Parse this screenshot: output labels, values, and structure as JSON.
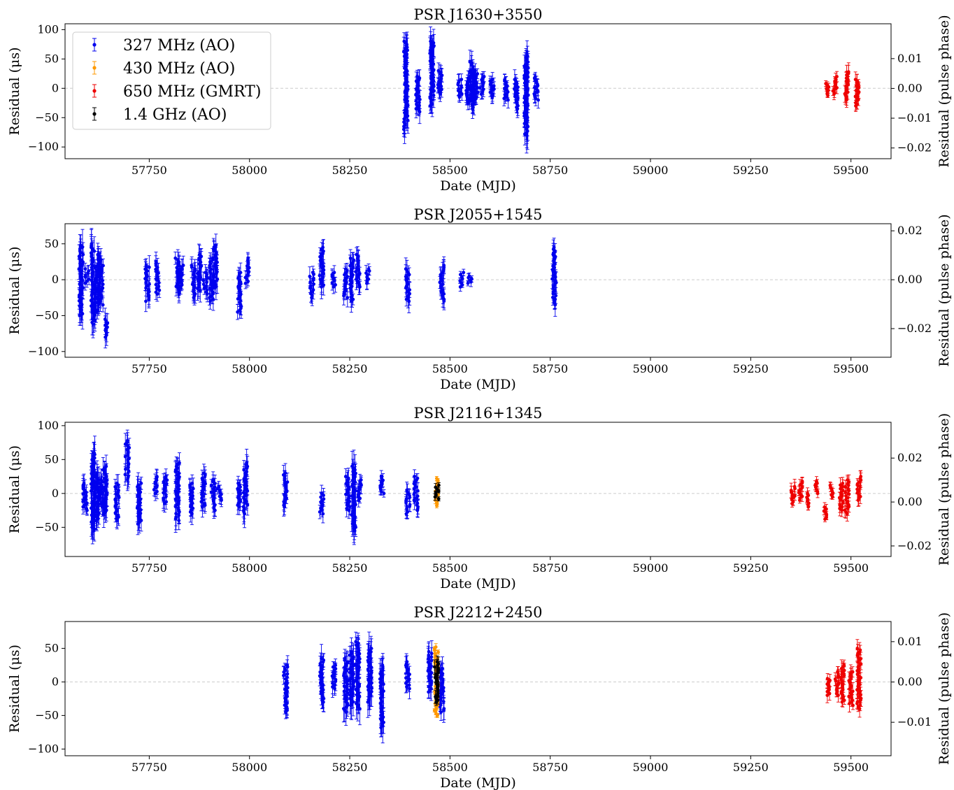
{
  "legend": [
    {
      "label": "327 MHz (AO)",
      "color": "#0000ee"
    },
    {
      "label": "430 MHz (AO)",
      "color": "#ff9900"
    },
    {
      "label": "650 MHz (GMRT)",
      "color": "#ee0000"
    },
    {
      "label": "1.4 GHz (AO)",
      "color": "#000000"
    }
  ],
  "colors": {
    "blue": "#0000ee",
    "orange": "#ff9900",
    "red": "#ee0000",
    "black": "#000000",
    "zero_line": "#cccccc"
  },
  "chart_data": [
    {
      "type": "scatter",
      "title": "PSR J1630+3550",
      "xlabel": "Date (MJD)",
      "ylabel": "Residual (μs)",
      "ylabel_right": "Residual (pulse phase)",
      "xlim": [
        57540,
        59600
      ],
      "ylim": [
        -120,
        110
      ],
      "ylim_right": [
        -0.0236,
        0.0217
      ],
      "xticks": [
        "57750",
        "58000",
        "58250",
        "58500",
        "58750",
        "59000",
        "59250",
        "59500"
      ],
      "yticks": [
        "−100",
        "−50",
        "0",
        "50",
        "100"
      ],
      "yticks_right": [
        "−0.02",
        "−0.01",
        "0.00",
        "0.01"
      ],
      "legend_position": "upper-left",
      "zero_line": true,
      "series": [
        {
          "name": "327 MHz (AO)",
          "color": "blue",
          "epochs": [
            {
              "x": 58390,
              "ymin": -70,
              "ymax": 80,
              "err": 20
            },
            {
              "x": 58420,
              "ymin": -40,
              "ymax": 20,
              "err": 15
            },
            {
              "x": 58455,
              "ymin": -30,
              "ymax": 80,
              "err": 20
            },
            {
              "x": 58475,
              "ymin": -10,
              "ymax": 30,
              "err": 12
            },
            {
              "x": 58525,
              "ymin": -15,
              "ymax": 15,
              "err": 10
            },
            {
              "x": 58545,
              "ymin": -25,
              "ymax": 20,
              "err": 12
            },
            {
              "x": 58555,
              "ymin": -35,
              "ymax": 45,
              "err": 15
            },
            {
              "x": 58565,
              "ymin": -20,
              "ymax": 30,
              "err": 12
            },
            {
              "x": 58580,
              "ymin": -10,
              "ymax": 20,
              "err": 10
            },
            {
              "x": 58605,
              "ymin": -15,
              "ymax": 15,
              "err": 10
            },
            {
              "x": 58640,
              "ymin": -20,
              "ymax": 15,
              "err": 10
            },
            {
              "x": 58665,
              "ymin": -35,
              "ymax": 15,
              "err": 12
            },
            {
              "x": 58690,
              "ymin": -78,
              "ymax": 55,
              "err": 25
            },
            {
              "x": 58715,
              "ymin": -20,
              "ymax": 20,
              "err": 10
            }
          ]
        },
        {
          "name": "650 MHz (GMRT)",
          "color": "red",
          "epochs": [
            {
              "x": 59440,
              "ymin": -12,
              "ymax": 8,
              "err": 5
            },
            {
              "x": 59460,
              "ymin": -10,
              "ymax": 20,
              "err": 8
            },
            {
              "x": 59490,
              "ymin": -20,
              "ymax": 28,
              "err": 12
            },
            {
              "x": 59515,
              "ymin": -30,
              "ymax": 15,
              "err": 10
            }
          ]
        }
      ]
    },
    {
      "type": "scatter",
      "title": "PSR J2055+1545",
      "xlabel": "Date (MJD)",
      "ylabel": "Residual (μs)",
      "ylabel_right": "Residual (pulse phase)",
      "xlim": [
        57540,
        59600
      ],
      "ylim": [
        -108,
        78
      ],
      "ylim_right": [
        -0.0317,
        0.0229
      ],
      "xticks": [
        "57750",
        "58000",
        "58250",
        "58500",
        "58750",
        "59000",
        "59250",
        "59500"
      ],
      "yticks": [
        "−100",
        "−50",
        "0",
        "50"
      ],
      "yticks_right": [
        "−0.02",
        "0.00",
        "0.02"
      ],
      "zero_line": true,
      "series": [
        {
          "name": "327 MHz (AO)",
          "color": "blue",
          "epochs": [
            {
              "x": 57580,
              "ymin": -50,
              "ymax": 48,
              "err": 18
            },
            {
              "x": 57595,
              "ymin": -5,
              "ymax": 15,
              "err": 8
            },
            {
              "x": 57610,
              "ymin": -62,
              "ymax": 50,
              "err": 18
            },
            {
              "x": 57620,
              "ymin": -45,
              "ymax": 35,
              "err": 15
            },
            {
              "x": 57630,
              "ymin": -35,
              "ymax": 30,
              "err": 12
            },
            {
              "x": 57645,
              "ymin": -80,
              "ymax": -55,
              "err": 12
            },
            {
              "x": 57745,
              "ymin": -30,
              "ymax": 20,
              "err": 12
            },
            {
              "x": 57770,
              "ymin": -20,
              "ymax": 25,
              "err": 10
            },
            {
              "x": 57820,
              "ymin": -20,
              "ymax": 30,
              "err": 12
            },
            {
              "x": 57830,
              "ymin": -10,
              "ymax": 20,
              "err": 10
            },
            {
              "x": 57860,
              "ymin": -25,
              "ymax": 20,
              "err": 12
            },
            {
              "x": 57875,
              "ymin": -15,
              "ymax": 35,
              "err": 15
            },
            {
              "x": 57890,
              "ymin": -20,
              "ymax": 10,
              "err": 10
            },
            {
              "x": 57905,
              "ymin": -30,
              "ymax": 30,
              "err": 12
            },
            {
              "x": 57915,
              "ymin": -10,
              "ymax": 48,
              "err": 14
            },
            {
              "x": 57975,
              "ymin": -45,
              "ymax": 10,
              "err": 12
            },
            {
              "x": 57995,
              "ymin": -5,
              "ymax": 30,
              "err": 8
            },
            {
              "x": 58155,
              "ymin": -25,
              "ymax": 10,
              "err": 10
            },
            {
              "x": 58180,
              "ymin": -10,
              "ymax": 45,
              "err": 12
            },
            {
              "x": 58210,
              "ymin": -10,
              "ymax": 10,
              "err": 8
            },
            {
              "x": 58240,
              "ymin": -25,
              "ymax": 15,
              "err": 10
            },
            {
              "x": 58255,
              "ymin": -30,
              "ymax": 30,
              "err": 12
            },
            {
              "x": 58270,
              "ymin": -10,
              "ymax": 35,
              "err": 12
            },
            {
              "x": 58295,
              "ymin": -5,
              "ymax": 15,
              "err": 8
            },
            {
              "x": 58395,
              "ymin": -30,
              "ymax": 15,
              "err": 12
            },
            {
              "x": 58480,
              "ymin": -30,
              "ymax": 20,
              "err": 12
            },
            {
              "x": 58530,
              "ymin": -10,
              "ymax": 10,
              "err": 5
            },
            {
              "x": 58550,
              "ymin": -5,
              "ymax": 5,
              "err": 5
            },
            {
              "x": 58760,
              "ymin": -35,
              "ymax": 45,
              "err": 12
            }
          ]
        }
      ]
    },
    {
      "type": "scatter",
      "title": "PSR J2116+1345",
      "xlabel": "Date (MJD)",
      "ylabel": "Residual (μs)",
      "ylabel_right": "Residual (pulse phase)",
      "xlim": [
        57540,
        59600
      ],
      "ylim": [
        -93,
        105
      ],
      "ylim_right": [
        -0.0248,
        0.0363
      ],
      "xticks": [
        "57750",
        "58000",
        "58250",
        "58500",
        "58750",
        "59000",
        "59250",
        "59500"
      ],
      "yticks": [
        "−50",
        "0",
        "50",
        "100"
      ],
      "yticks_right": [
        "−0.02",
        "0.00",
        "0.02"
      ],
      "zero_line": true,
      "series": [
        {
          "name": "327 MHz (AO)",
          "color": "blue",
          "epochs": [
            {
              "x": 57590,
              "ymin": -25,
              "ymax": 15,
              "err": 12
            },
            {
              "x": 57610,
              "ymin": -55,
              "ymax": 60,
              "err": 20
            },
            {
              "x": 57620,
              "ymin": -40,
              "ymax": 30,
              "err": 15
            },
            {
              "x": 57630,
              "ymin": -20,
              "ymax": 20,
              "err": 12
            },
            {
              "x": 57640,
              "ymin": -30,
              "ymax": 40,
              "err": 15
            },
            {
              "x": 57670,
              "ymin": -40,
              "ymax": 15,
              "err": 12
            },
            {
              "x": 57695,
              "ymin": 20,
              "ymax": 78,
              "err": 15
            },
            {
              "x": 57725,
              "ymin": -45,
              "ymax": 15,
              "err": 15
            },
            {
              "x": 57765,
              "ymin": 0,
              "ymax": 25,
              "err": 10
            },
            {
              "x": 57790,
              "ymin": -15,
              "ymax": 25,
              "err": 12
            },
            {
              "x": 57820,
              "ymin": -40,
              "ymax": 45,
              "err": 15
            },
            {
              "x": 57855,
              "ymin": -30,
              "ymax": 15,
              "err": 12
            },
            {
              "x": 57885,
              "ymin": -20,
              "ymax": 30,
              "err": 12
            },
            {
              "x": 57910,
              "ymin": -25,
              "ymax": 20,
              "err": 12
            },
            {
              "x": 57925,
              "ymin": -10,
              "ymax": 10,
              "err": 8
            },
            {
              "x": 57975,
              "ymin": -20,
              "ymax": 15,
              "err": 10
            },
            {
              "x": 57990,
              "ymin": -30,
              "ymax": 45,
              "err": 15
            },
            {
              "x": 58090,
              "ymin": -20,
              "ymax": 30,
              "err": 12
            },
            {
              "x": 58180,
              "ymin": -30,
              "ymax": 0,
              "err": 10
            },
            {
              "x": 58245,
              "ymin": -25,
              "ymax": 25,
              "err": 12
            },
            {
              "x": 58260,
              "ymin": -55,
              "ymax": 40,
              "err": 20
            },
            {
              "x": 58275,
              "ymin": -10,
              "ymax": 20,
              "err": 10
            },
            {
              "x": 58330,
              "ymin": 0,
              "ymax": 25,
              "err": 8
            },
            {
              "x": 58395,
              "ymin": -30,
              "ymax": 5,
              "err": 10
            },
            {
              "x": 58415,
              "ymin": -25,
              "ymax": 25,
              "err": 10
            }
          ]
        },
        {
          "name": "430 MHz (AO)",
          "color": "orange",
          "epochs": [
            {
              "x": 58467,
              "ymin": -18,
              "ymax": 22,
              "err": 4
            }
          ]
        },
        {
          "name": "1.4 GHz (AO)",
          "color": "black",
          "epochs": [
            {
              "x": 58468,
              "ymin": -8,
              "ymax": 12,
              "err": 4
            }
          ]
        },
        {
          "name": "650 MHz (GMRT)",
          "color": "red",
          "epochs": [
            {
              "x": 59355,
              "ymin": -15,
              "ymax": 10,
              "err": 8
            },
            {
              "x": 59375,
              "ymin": -10,
              "ymax": 18,
              "err": 6
            },
            {
              "x": 59395,
              "ymin": -20,
              "ymax": 0,
              "err": 6
            },
            {
              "x": 59415,
              "ymin": 0,
              "ymax": 18,
              "err": 5
            },
            {
              "x": 59435,
              "ymin": -38,
              "ymax": -20,
              "err": 5
            },
            {
              "x": 59450,
              "ymin": -5,
              "ymax": 12,
              "err": 5
            },
            {
              "x": 59475,
              "ymin": -25,
              "ymax": 15,
              "err": 8
            },
            {
              "x": 59490,
              "ymin": -30,
              "ymax": 20,
              "err": 8
            },
            {
              "x": 59520,
              "ymin": -10,
              "ymax": 25,
              "err": 8
            }
          ]
        }
      ]
    },
    {
      "type": "scatter",
      "title": "PSR J2212+2450",
      "xlabel": "Date (MJD)",
      "ylabel": "Residual (μs)",
      "ylabel_right": "Residual (pulse phase)",
      "xlim": [
        57540,
        59600
      ],
      "ylim": [
        -110,
        90
      ],
      "ylim_right": [
        -0.0183,
        0.015
      ],
      "xticks": [
        "57750",
        "58000",
        "58250",
        "58500",
        "58750",
        "59000",
        "59250",
        "59500"
      ],
      "yticks": [
        "−100",
        "−50",
        "0",
        "50"
      ],
      "yticks_right": [
        "−0.01",
        "0.00",
        "0.01"
      ],
      "zero_line": true,
      "series": [
        {
          "name": "327 MHz (AO)",
          "color": "blue",
          "epochs": [
            {
              "x": 58090,
              "ymin": -45,
              "ymax": 25,
              "err": 12
            },
            {
              "x": 58180,
              "ymin": -30,
              "ymax": 35,
              "err": 15
            },
            {
              "x": 58210,
              "ymin": -10,
              "ymax": 25,
              "err": 12
            },
            {
              "x": 58240,
              "ymin": -45,
              "ymax": 35,
              "err": 15
            },
            {
              "x": 58255,
              "ymin": -35,
              "ymax": 45,
              "err": 18
            },
            {
              "x": 58270,
              "ymin": -40,
              "ymax": 60,
              "err": 18
            },
            {
              "x": 58300,
              "ymin": -30,
              "ymax": 50,
              "err": 20
            },
            {
              "x": 58330,
              "ymin": -68,
              "ymax": 25,
              "err": 20
            },
            {
              "x": 58395,
              "ymin": -10,
              "ymax": 30,
              "err": 12
            },
            {
              "x": 58450,
              "ymin": -15,
              "ymax": 45,
              "err": 15
            },
            {
              "x": 58480,
              "ymin": -45,
              "ymax": 20,
              "err": 15
            }
          ]
        },
        {
          "name": "430 MHz (AO)",
          "color": "orange",
          "epochs": [
            {
              "x": 58466,
              "ymin": -50,
              "ymax": 52,
              "err": 4
            }
          ]
        },
        {
          "name": "1.4 GHz (AO)",
          "color": "black",
          "epochs": [
            {
              "x": 58467,
              "ymin": -30,
              "ymax": 30,
              "err": 8
            }
          ]
        },
        {
          "name": "650 MHz (GMRT)",
          "color": "red",
          "epochs": [
            {
              "x": 59445,
              "ymin": -20,
              "ymax": 5,
              "err": 8
            },
            {
              "x": 59465,
              "ymin": -20,
              "ymax": 15,
              "err": 8
            },
            {
              "x": 59480,
              "ymin": -30,
              "ymax": 25,
              "err": 10
            },
            {
              "x": 59500,
              "ymin": -35,
              "ymax": 15,
              "err": 10
            },
            {
              "x": 59520,
              "ymin": -40,
              "ymax": 50,
              "err": 10
            }
          ]
        }
      ]
    }
  ]
}
